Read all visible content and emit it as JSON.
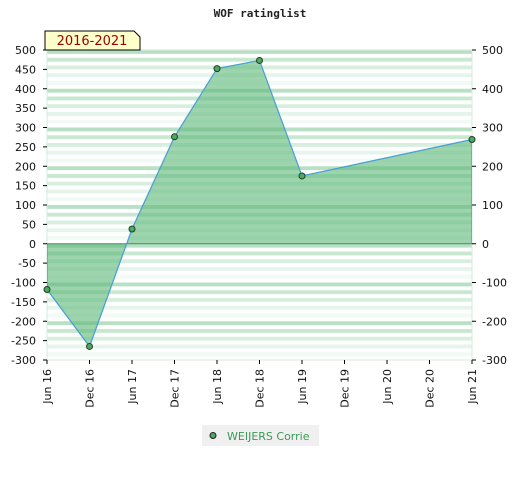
{
  "chart_data": {
    "type": "area",
    "title": "WOF ratinglist",
    "badge": "2016-2021",
    "x": [
      "Jun 16",
      "Dec 16",
      "Jun 17",
      "Dec 17",
      "Jun 18",
      "Dec 18",
      "Jun 19",
      "Dec 19",
      "Jun 20",
      "Dec 20",
      "Jun 21"
    ],
    "series": [
      {
        "name": "WEIJERS Corrie",
        "points": [
          {
            "x": "Jun 16",
            "y": -118
          },
          {
            "x": "Dec 16",
            "y": -265
          },
          {
            "x": "Jun 17",
            "y": 38
          },
          {
            "x": "Dec 17",
            "y": 276
          },
          {
            "x": "Jun 18",
            "y": 452
          },
          {
            "x": "Dec 18",
            "y": 473
          },
          {
            "x": "Jun 19",
            "y": 175
          },
          {
            "x": "Jun 21",
            "y": 269
          }
        ]
      }
    ],
    "ylim": [
      -300,
      500
    ],
    "yticks": [
      -300,
      -250,
      -200,
      -150,
      -100,
      -50,
      0,
      50,
      100,
      150,
      200,
      250,
      300,
      350,
      400,
      450,
      500
    ],
    "y2ticks": [
      -300,
      -200,
      -100,
      0,
      100,
      200,
      300,
      400,
      500
    ],
    "grid": true,
    "legend_position": "bottom",
    "colors": {
      "area_fill": "#5cb878",
      "line": "#4a9fd8",
      "marker": "#4fa860",
      "badge_bg": "#ffffcc",
      "badge_text": "#990000",
      "legend_bg": "#f0f0f0"
    }
  }
}
